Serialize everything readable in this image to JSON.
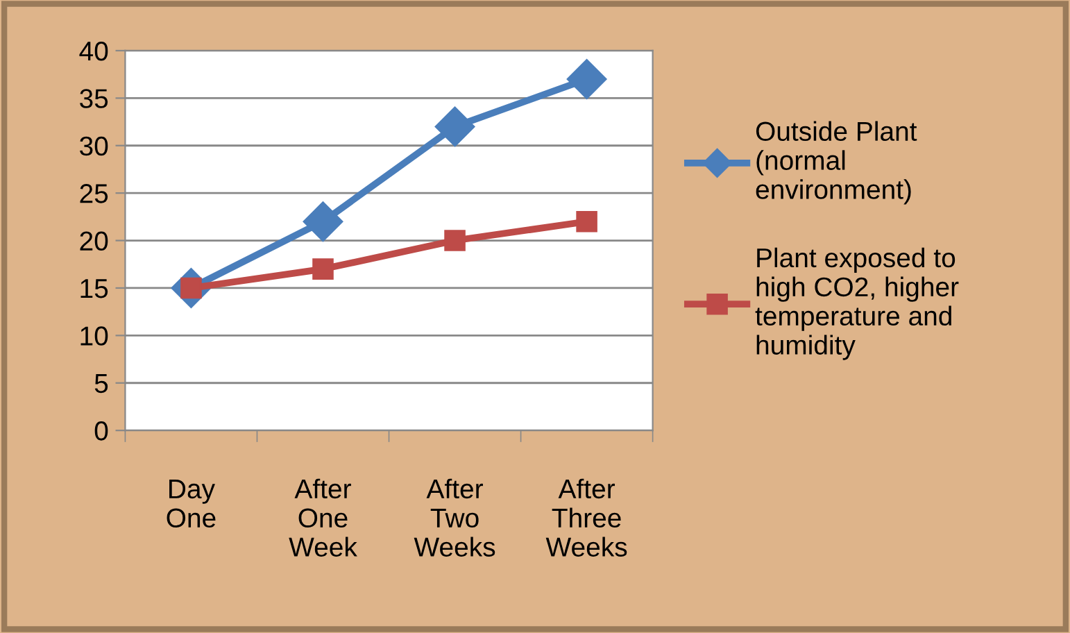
{
  "chart_data": {
    "type": "line",
    "categories": [
      "Day One",
      "After One Week",
      "After Two Weeks",
      "After Three Weeks"
    ],
    "series": [
      {
        "name": "Outside Plant (normal environment)",
        "color": "#4a7ebb",
        "marker": "diamond",
        "values": [
          15,
          22,
          32,
          37
        ]
      },
      {
        "name": "Plant exposed to high CO2, higher temperature and humidity",
        "color": "#be4b48",
        "marker": "square",
        "values": [
          15,
          17,
          20,
          22
        ]
      }
    ],
    "ylim": [
      0,
      40
    ],
    "yticks": [
      0,
      5,
      10,
      15,
      20,
      25,
      30,
      35,
      40
    ],
    "grid": "y",
    "legend": "right"
  }
}
